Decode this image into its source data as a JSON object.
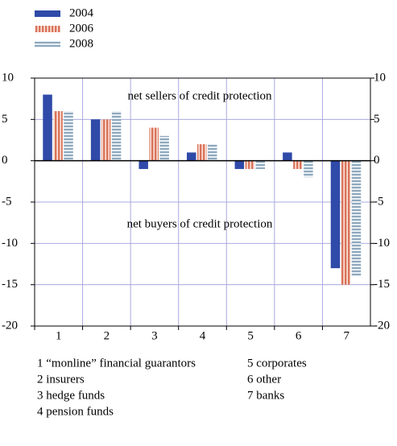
{
  "chart_data": {
    "type": "bar",
    "categories": [
      "1",
      "2",
      "3",
      "4",
      "5",
      "6",
      "7"
    ],
    "series": [
      {
        "name": "2004",
        "color": "#2f4aa8",
        "pattern": "solid",
        "values": [
          8,
          5,
          -1,
          1,
          -1,
          1,
          -13
        ]
      },
      {
        "name": "2006",
        "color": "#e08a72",
        "pattern": "vertical-stripes",
        "values": [
          6,
          5,
          4,
          2,
          -1,
          -1,
          -15
        ]
      },
      {
        "name": "2008",
        "color": "#9db4c6",
        "pattern": "horizontal-stripes",
        "values": [
          6,
          6,
          3,
          2,
          -1,
          -2,
          -14
        ]
      }
    ],
    "ylim": [
      -20,
      10
    ],
    "yticks": [
      -20,
      -15,
      -10,
      -5,
      0,
      5,
      10
    ],
    "grid": true,
    "annotations": [
      "net sellers of credit protection",
      "net buyers of credit protection"
    ],
    "notes": [
      "1 “monline” financial guarantors",
      "2 insurers",
      "3 hedge funds",
      "4 pension funds",
      "5 corporates",
      "6 other",
      "7 banks"
    ]
  }
}
